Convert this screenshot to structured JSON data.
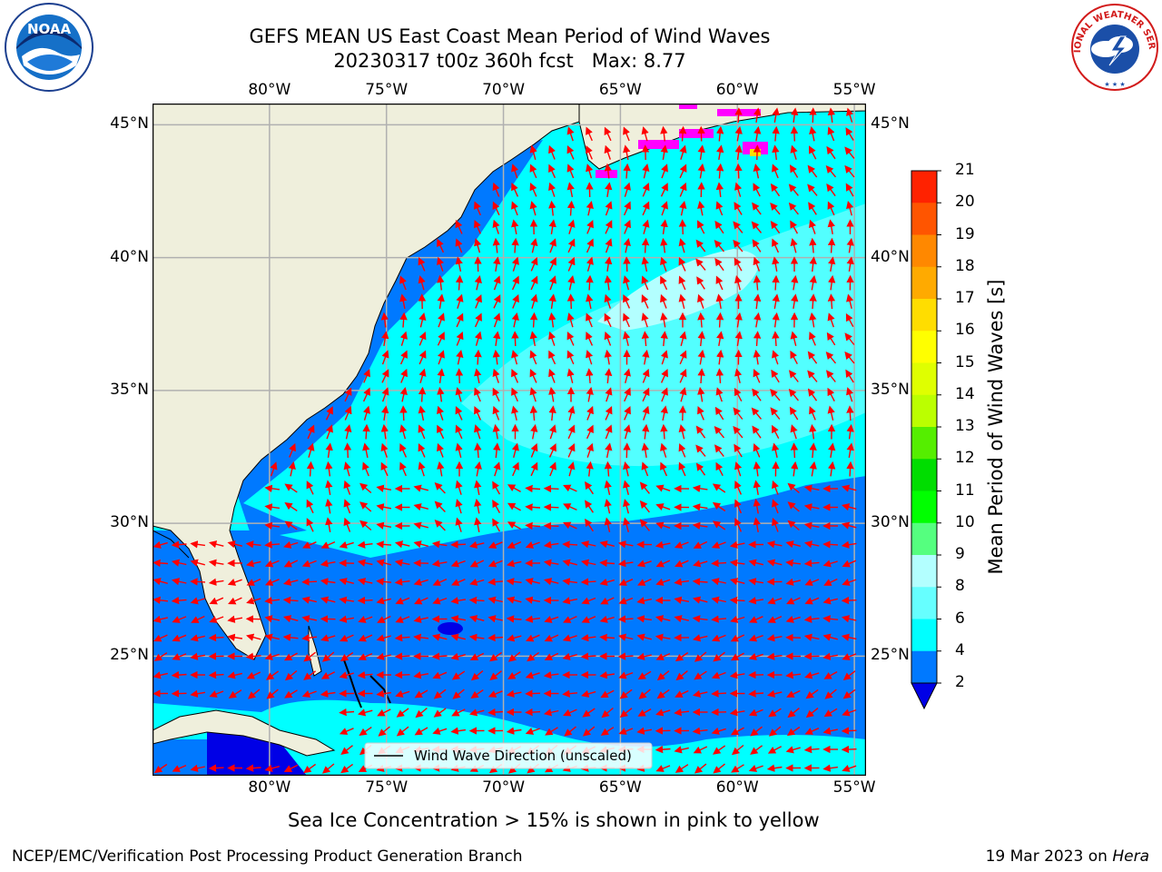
{
  "title": {
    "line1": "GEFS MEAN US East Coast Mean Period of Wind Waves",
    "line2": "20230317 t00z 360h fcst   Max: 8.77"
  },
  "logos": {
    "left": "NOAA",
    "right": "NATIONAL WEATHER SERVICE"
  },
  "map": {
    "lon_labels": [
      "80°W",
      "75°W",
      "70°W",
      "65°W",
      "60°W",
      "55°W"
    ],
    "lat_labels": [
      "45°N",
      "40°N",
      "35°N",
      "30°N",
      "25°N"
    ],
    "lon_range": [
      -85,
      -54.5
    ],
    "lat_range": [
      20.5,
      45.8
    ],
    "grid": true,
    "legend_label": "Wind Wave Direction (unscaled)",
    "colors": {
      "land": "#efefdc",
      "ocean_dark": "#0079ff",
      "ocean_cyan": "#00ffff",
      "ocean_light": "#66ffff",
      "ocean_pale": "#b3ffff",
      "deep_blue": "#0000e6",
      "arrow": "#ff0000",
      "ice": "#ff00ff",
      "gridline": "#b0b0b0"
    }
  },
  "colorbar": {
    "label": "Mean Period of Wind Waves [s]",
    "ticks": [
      "2",
      "4",
      "6",
      "8",
      "9",
      "10",
      "11",
      "12",
      "13",
      "14",
      "15",
      "16",
      "17",
      "18",
      "19",
      "20",
      "21"
    ],
    "colors": [
      "#0079ff",
      "#00ffff",
      "#66ffff",
      "#b3ffff",
      "#55ff7f",
      "#00ff00",
      "#00dd00",
      "#55ee00",
      "#bbff00",
      "#dfff00",
      "#ffff00",
      "#ffdd00",
      "#ffaa00",
      "#ff8800",
      "#ff5500",
      "#ff2200"
    ],
    "extend_color": "#0000e6"
  },
  "subtitle": "Sea Ice Concentration > 15% is shown in pink to yellow",
  "footer": {
    "left": "NCEP/EMC/Verification Post Processing Product Generation Branch",
    "right_date": "19 Mar 2023 on ",
    "right_machine": "Hera"
  }
}
